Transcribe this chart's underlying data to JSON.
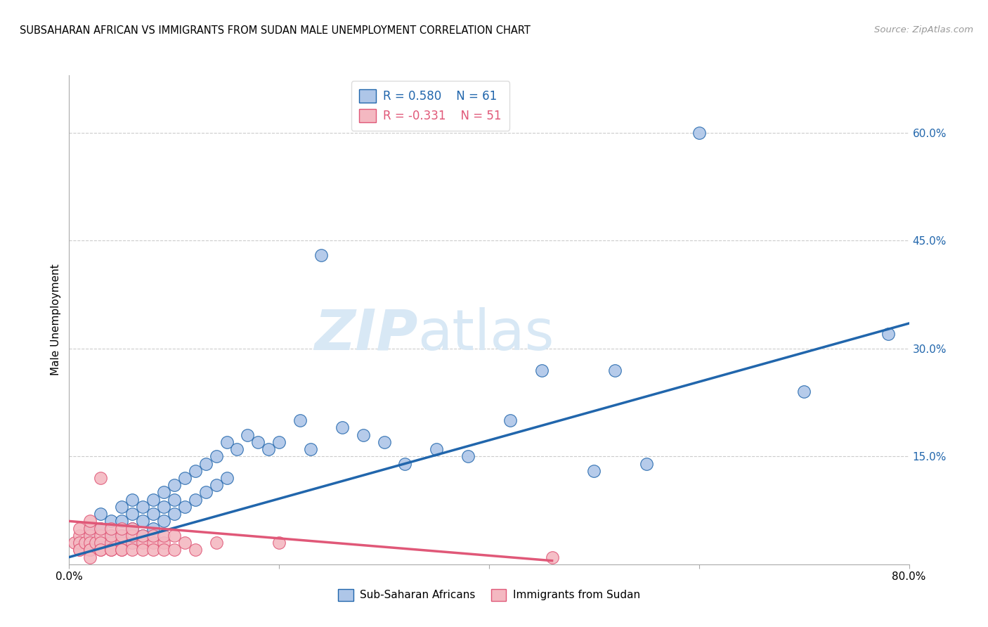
{
  "title": "SUBSAHARAN AFRICAN VS IMMIGRANTS FROM SUDAN MALE UNEMPLOYMENT CORRELATION CHART",
  "source": "Source: ZipAtlas.com",
  "ylabel": "Male Unemployment",
  "xlim": [
    0.0,
    0.8
  ],
  "ylim": [
    0.0,
    0.68
  ],
  "yticks": [
    0.0,
    0.15,
    0.3,
    0.45,
    0.6
  ],
  "ytick_labels": [
    "",
    "15.0%",
    "30.0%",
    "45.0%",
    "60.0%"
  ],
  "xticks": [
    0.0,
    0.2,
    0.4,
    0.6,
    0.8
  ],
  "xtick_labels": [
    "0.0%",
    "",
    "",
    "",
    "80.0%"
  ],
  "grid_color": "#cccccc",
  "background_color": "#ffffff",
  "blue_scatter_face": "#aec6e8",
  "blue_edge_color": "#2166ac",
  "pink_scatter_face": "#f4b8c1",
  "pink_edge_color": "#e05878",
  "blue_line_color": "#2166ac",
  "pink_line_color": "#e05878",
  "R_blue": 0.58,
  "N_blue": 61,
  "R_pink": -0.331,
  "N_pink": 51,
  "legend_text_color_blue": "#2166ac",
  "legend_text_color_pink": "#e05878",
  "watermark_text": "ZIPatlas",
  "watermark_color": "#d8e8f5",
  "blue_points_x": [
    0.01,
    0.02,
    0.02,
    0.02,
    0.03,
    0.03,
    0.03,
    0.04,
    0.04,
    0.04,
    0.05,
    0.05,
    0.05,
    0.06,
    0.06,
    0.06,
    0.06,
    0.07,
    0.07,
    0.07,
    0.08,
    0.08,
    0.08,
    0.09,
    0.09,
    0.09,
    0.1,
    0.1,
    0.1,
    0.11,
    0.11,
    0.12,
    0.12,
    0.13,
    0.13,
    0.14,
    0.14,
    0.15,
    0.15,
    0.16,
    0.17,
    0.18,
    0.19,
    0.2,
    0.22,
    0.23,
    0.24,
    0.26,
    0.28,
    0.3,
    0.32,
    0.35,
    0.38,
    0.42,
    0.45,
    0.5,
    0.52,
    0.55,
    0.6,
    0.7,
    0.78
  ],
  "blue_points_y": [
    0.03,
    0.04,
    0.02,
    0.05,
    0.05,
    0.03,
    0.07,
    0.04,
    0.06,
    0.03,
    0.06,
    0.08,
    0.04,
    0.07,
    0.05,
    0.09,
    0.03,
    0.08,
    0.06,
    0.04,
    0.09,
    0.07,
    0.05,
    0.1,
    0.08,
    0.06,
    0.11,
    0.09,
    0.07,
    0.12,
    0.08,
    0.13,
    0.09,
    0.14,
    0.1,
    0.15,
    0.11,
    0.17,
    0.12,
    0.16,
    0.18,
    0.17,
    0.16,
    0.17,
    0.2,
    0.16,
    0.43,
    0.19,
    0.18,
    0.17,
    0.14,
    0.16,
    0.15,
    0.2,
    0.27,
    0.13,
    0.27,
    0.14,
    0.6,
    0.24,
    0.32
  ],
  "pink_points_x": [
    0.005,
    0.01,
    0.01,
    0.01,
    0.01,
    0.01,
    0.015,
    0.02,
    0.02,
    0.02,
    0.02,
    0.02,
    0.02,
    0.02,
    0.025,
    0.03,
    0.03,
    0.03,
    0.03,
    0.03,
    0.03,
    0.04,
    0.04,
    0.04,
    0.04,
    0.04,
    0.05,
    0.05,
    0.05,
    0.05,
    0.05,
    0.06,
    0.06,
    0.06,
    0.06,
    0.07,
    0.07,
    0.07,
    0.08,
    0.08,
    0.08,
    0.09,
    0.09,
    0.09,
    0.1,
    0.1,
    0.11,
    0.12,
    0.14,
    0.2,
    0.46
  ],
  "pink_points_y": [
    0.03,
    0.02,
    0.04,
    0.03,
    0.05,
    0.02,
    0.03,
    0.02,
    0.04,
    0.03,
    0.05,
    0.02,
    0.06,
    0.01,
    0.03,
    0.02,
    0.04,
    0.03,
    0.05,
    0.02,
    0.12,
    0.03,
    0.02,
    0.04,
    0.05,
    0.02,
    0.03,
    0.04,
    0.02,
    0.05,
    0.02,
    0.03,
    0.04,
    0.02,
    0.05,
    0.03,
    0.04,
    0.02,
    0.03,
    0.04,
    0.02,
    0.03,
    0.04,
    0.02,
    0.04,
    0.02,
    0.03,
    0.02,
    0.03,
    0.03,
    0.01
  ],
  "blue_line_x0": 0.0,
  "blue_line_x1": 0.8,
  "blue_line_y0": 0.01,
  "blue_line_y1": 0.335,
  "pink_line_x0": 0.0,
  "pink_line_x1": 0.46,
  "pink_line_y0": 0.06,
  "pink_line_y1": 0.005
}
